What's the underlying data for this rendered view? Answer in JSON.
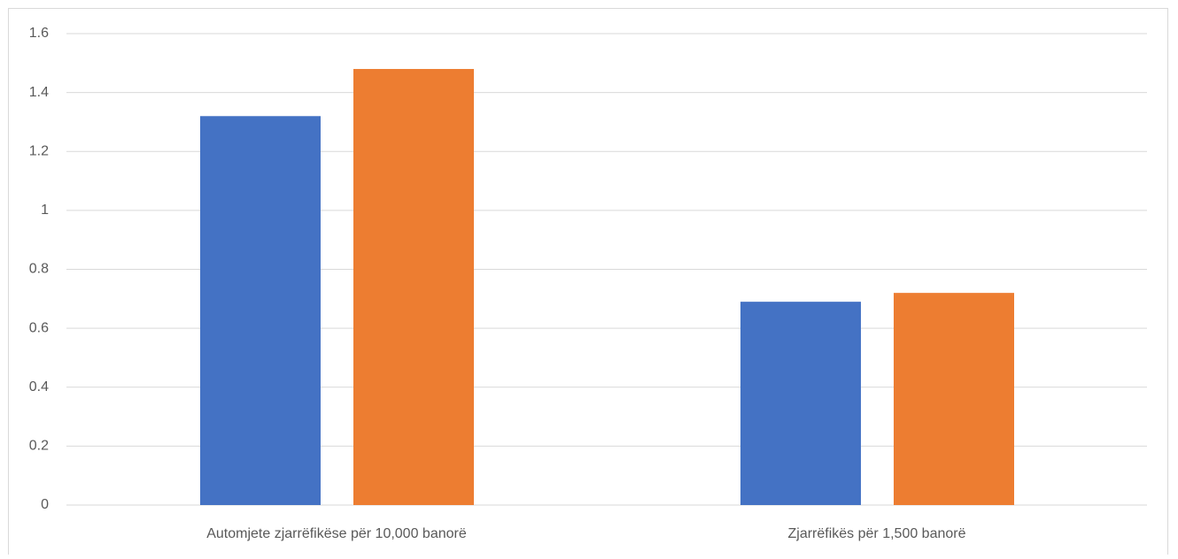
{
  "chart_data": {
    "type": "bar",
    "categories": [
      "Automjete zjarrëfikëse për 10,000 banorë",
      "Zjarrëfikës për 1,500 banorë"
    ],
    "series": [
      {
        "color": "#4472c4",
        "values": [
          1.32,
          0.69
        ]
      },
      {
        "color": "#ed7d31",
        "values": [
          1.48,
          0.72
        ]
      }
    ],
    "ylim": [
      0,
      1.6
    ],
    "yticks": [
      0,
      0.2,
      0.4,
      0.6,
      0.8,
      1,
      1.2,
      1.4,
      1.6
    ],
    "grid": true
  }
}
